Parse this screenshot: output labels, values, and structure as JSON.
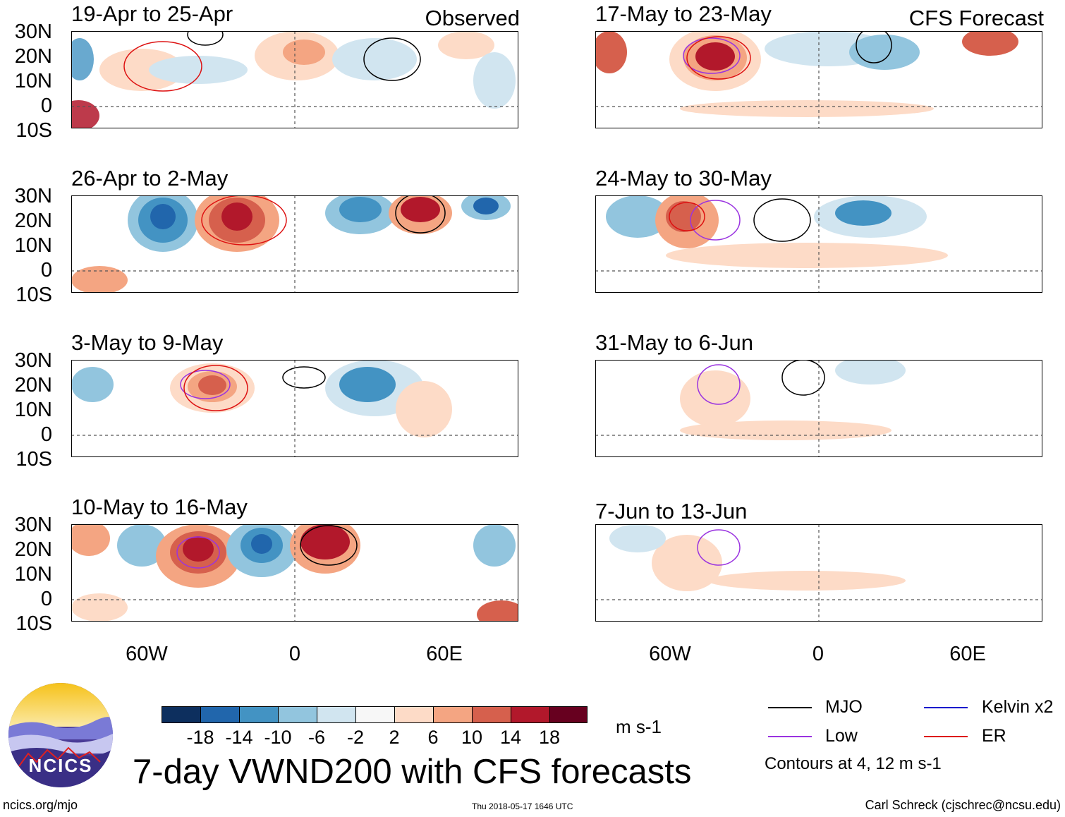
{
  "observed_label": "Observed",
  "forecast_label": "CFS Forecast",
  "panels": [
    {
      "title": "19-Apr to 25-Apr"
    },
    {
      "title": "26-Apr to 2-May"
    },
    {
      "title": "3-May to 9-May"
    },
    {
      "title": "10-May to 16-May"
    },
    {
      "title": "17-May to 23-May"
    },
    {
      "title": "24-May to 30-May"
    },
    {
      "title": "31-May to 6-Jun"
    },
    {
      "title": "7-Jun to 13-Jun"
    }
  ],
  "lat_labels": [
    "30N",
    "20N",
    "10N",
    "0",
    "10S"
  ],
  "lon_labels": [
    "60W",
    "0",
    "60E"
  ],
  "colorbar": {
    "labels": [
      "-18",
      "-14",
      "-10",
      "-6",
      "-2",
      "2",
      "6",
      "10",
      "14",
      "18"
    ],
    "colors": [
      "#0d2f5e",
      "#2166ac",
      "#4393c3",
      "#92c5de",
      "#d1e5f0",
      "#f7f7f7",
      "#fddbc7",
      "#f4a582",
      "#d6604d",
      "#b2182b",
      "#67001f"
    ],
    "units": "m s-1"
  },
  "legend": {
    "items": [
      {
        "label": "MJO",
        "color": "#000000"
      },
      {
        "label": "Kelvin x2",
        "color": "#1a1acc"
      },
      {
        "label": "Low",
        "color": "#9a33e0"
      },
      {
        "label": "ER",
        "color": "#dd1111"
      }
    ],
    "note": "Contours at 4, 12 m s-1"
  },
  "main_title": "7-day VWND200 with CFS forecasts",
  "logo_text": "NCICS",
  "footer": {
    "left": "ncics.org/mjo",
    "center": "Thu 2018-05-17 1646 UTC",
    "right": "Carl Schreck (cjschrec@ncsu.edu)"
  }
}
